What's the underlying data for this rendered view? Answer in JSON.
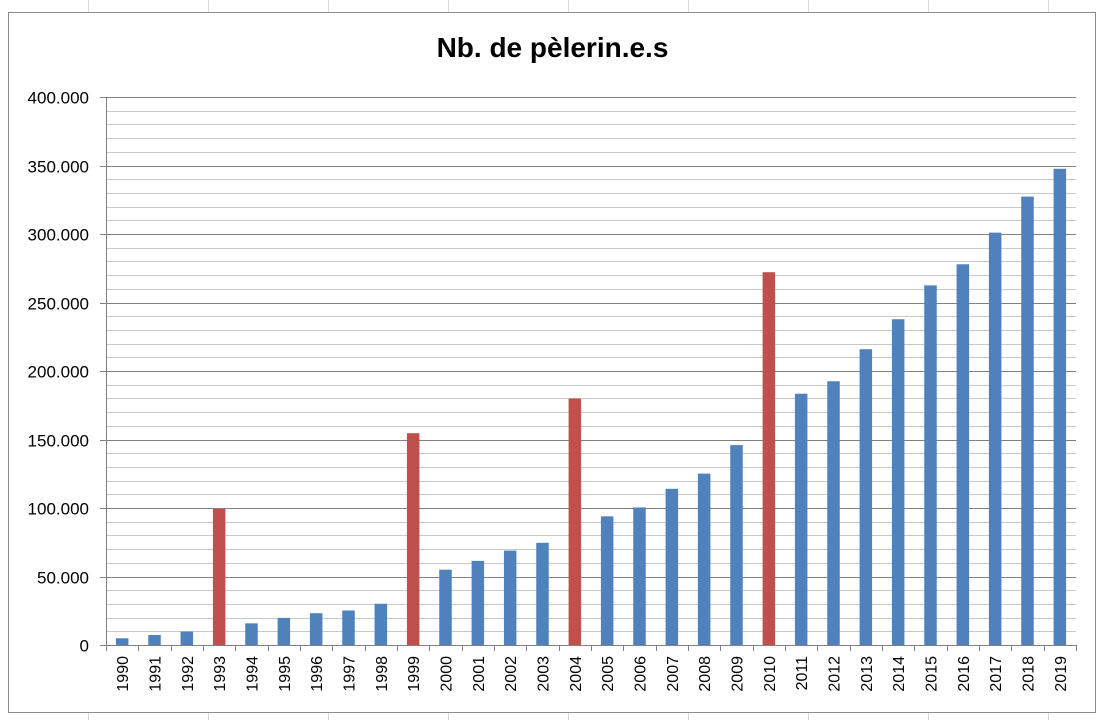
{
  "chart_data": {
    "type": "bar",
    "title": "Nb. de pèlerin.e.s",
    "xlabel": "",
    "ylabel": "",
    "ylim": [
      0,
      400000
    ],
    "y_major_ticks": [
      0,
      50000,
      100000,
      150000,
      200000,
      250000,
      300000,
      350000,
      400000
    ],
    "y_tick_labels": [
      "0",
      "50.000",
      "100.000",
      "150.000",
      "200.000",
      "250.000",
      "300.000",
      "350.000",
      "400.000"
    ],
    "y_minor_step": 10000,
    "grid": true,
    "legend": "none",
    "categories": [
      "1990",
      "1991",
      "1992",
      "1993",
      "1994",
      "1995",
      "1996",
      "1997",
      "1998",
      "1999",
      "2000",
      "2001",
      "2002",
      "2003",
      "2004",
      "2005",
      "2006",
      "2007",
      "2008",
      "2009",
      "2010",
      "2011",
      "2012",
      "2013",
      "2014",
      "2015",
      "2016",
      "2017",
      "2018",
      "2019"
    ],
    "values": [
      4900,
      7300,
      9800,
      99400,
      15800,
      19800,
      23200,
      25200,
      30100,
      154600,
      55000,
      61400,
      68900,
      74600,
      179900,
      93900,
      100400,
      114000,
      125100,
      145900,
      272100,
      183400,
      192500,
      215900,
      237800,
      262500,
      277900,
      301000,
      327300,
      347600
    ],
    "highlighted_categories": [
      "1993",
      "1999",
      "2004",
      "2010"
    ],
    "colors": {
      "default_bar": "#4f81bd",
      "highlight_bar": "#c0504d",
      "gridline": "#808080"
    }
  }
}
